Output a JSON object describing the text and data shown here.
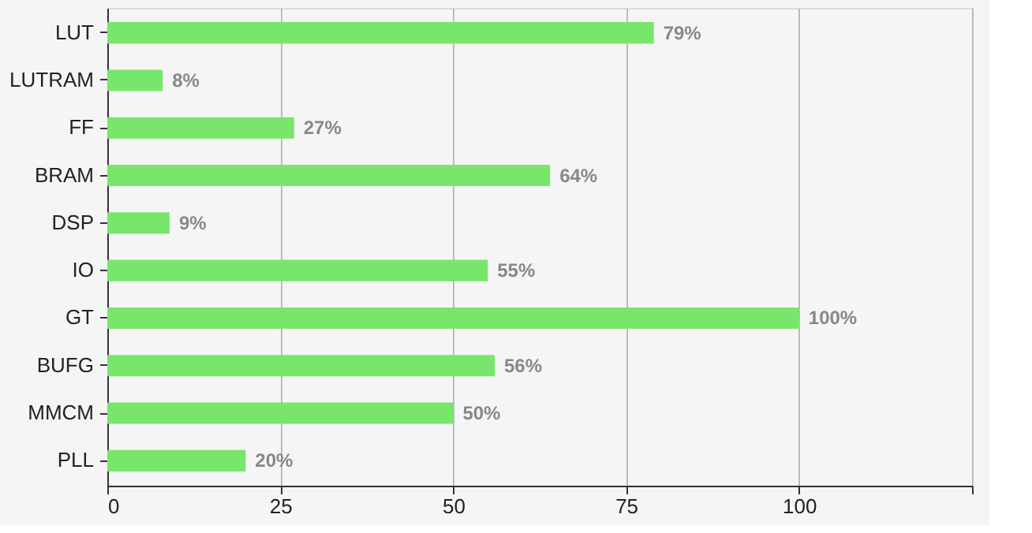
{
  "chart_data": {
    "type": "bar",
    "orientation": "horizontal",
    "categories": [
      "LUT",
      "LUTRAM",
      "FF",
      "BRAM",
      "DSP",
      "IO",
      "GT",
      "BUFG",
      "MMCM",
      "PLL"
    ],
    "values": [
      79,
      8,
      27,
      64,
      9,
      55,
      100,
      56,
      50,
      20
    ],
    "value_labels": [
      "79%",
      "8%",
      "27%",
      "64%",
      "9%",
      "55%",
      "100%",
      "56%",
      "50%",
      "20%"
    ],
    "color": "#77e66b",
    "xlim": [
      0,
      125
    ],
    "xticks": [
      0,
      25,
      50,
      75,
      100,
      {
        "value": 125,
        "label": null
      }
    ],
    "grid": "x"
  }
}
